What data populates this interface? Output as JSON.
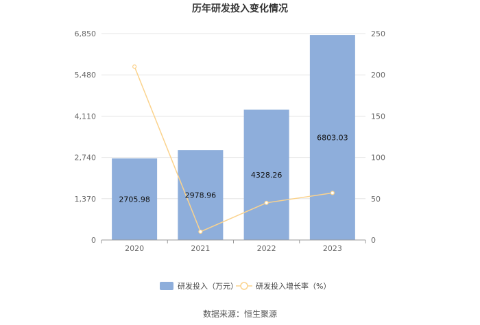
{
  "chart_data": {
    "type": "bar",
    "title": "历年研发投入变化情况",
    "categories": [
      "2020",
      "2021",
      "2022",
      "2023"
    ],
    "series": [
      {
        "name": "研发投入（万元）",
        "type": "bar",
        "axis": "left",
        "values": [
          2705.98,
          2978.96,
          4328.26,
          6803.03
        ],
        "value_labels": [
          "2705.98",
          "2978.96",
          "4328.26",
          "6803.03"
        ]
      },
      {
        "name": "研发投入增长率（%）",
        "type": "line",
        "axis": "right",
        "values": [
          210,
          10,
          45,
          57
        ]
      }
    ],
    "y_left": {
      "ylim": [
        0,
        6850
      ],
      "ticks": [
        0,
        1370,
        2740,
        4110,
        5480,
        6850
      ],
      "tick_labels": [
        "0",
        "1,370",
        "2,740",
        "4,110",
        "5,480",
        "6,850"
      ]
    },
    "y_right": {
      "ylim": [
        0,
        250
      ],
      "ticks": [
        0,
        50,
        100,
        150,
        200,
        250
      ],
      "tick_labels": [
        "0",
        "50",
        "100",
        "150",
        "200",
        "250"
      ]
    },
    "grid": true,
    "legend": "bottom-center",
    "colors": {
      "bar": "#8eaedb",
      "line": "#fbd38d"
    }
  },
  "source_text": "数据来源：恒生聚源"
}
